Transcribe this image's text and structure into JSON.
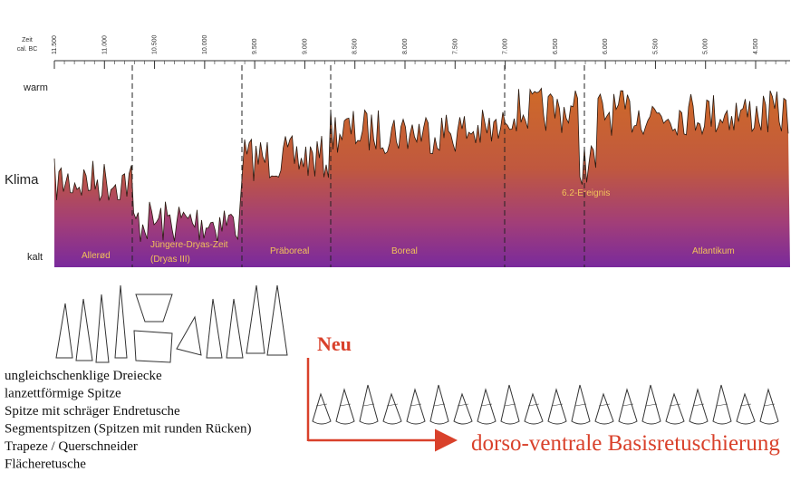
{
  "axis": {
    "label_line1": "Zeit",
    "label_line2": "cal. BC",
    "ticks": [
      "11.500",
      "11.000",
      "10.500",
      "10.000",
      "9.500",
      "9.000",
      "8.500",
      "8.000",
      "7.500",
      "7.000",
      "6.500",
      "6.000",
      "5.500",
      "5.000",
      "4.500"
    ]
  },
  "climate": {
    "warm": "warm",
    "label": "Klima",
    "cold": "kalt"
  },
  "periods": {
    "allerod": "Allerød",
    "younger_dryas": "Jüngere-Dryas-Zeit",
    "younger_dryas_alt": "(Dryas III)",
    "preboreal": "Präboreal",
    "boreal": "Boreal",
    "atlantic": "Atlantikum",
    "event": "6.2-Ereignis"
  },
  "old_types": [
    "ungleichschenklige Dreiecke",
    "lanzettförmige Spitze",
    "Spitze mit schräger Endretusche",
    "Segmentspitzen (Spitzen mit runden Rücken)",
    "Trapeze / Querschneider",
    "Flächeretusche"
  ],
  "new": {
    "label": "Neu",
    "caption": "dorso-ventrale Basisretuschierung"
  }
}
